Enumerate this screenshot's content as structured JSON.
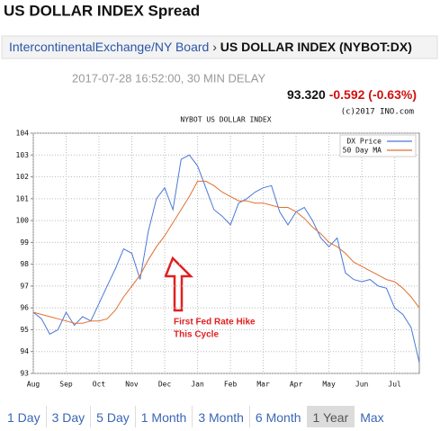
{
  "header": {
    "title": "US DOLLAR INDEX Spread",
    "breadcrumb_link": "IntercontinentalExchange/NY Board",
    "breadcrumb_sep": "›",
    "breadcrumb_current": "US DOLLAR INDEX (NYBOT:DX)",
    "timestamp": "2017-07-28 16:52:00, 30 MIN DELAY",
    "price": "93.320",
    "change": "-0.592 (-0.63%)",
    "copyright": "(c)2017 INO.com"
  },
  "chart_data": {
    "type": "line",
    "title": "NYBOT US DOLLAR INDEX",
    "categories": [
      "Aug",
      null,
      null,
      null,
      "Sep",
      null,
      null,
      null,
      "Oct",
      null,
      null,
      null,
      "Nov",
      null,
      null,
      null,
      "Dec",
      null,
      null,
      null,
      "Jan",
      null,
      null,
      null,
      "Feb",
      null,
      null,
      null,
      "Mar",
      null,
      null,
      null,
      "Apr",
      null,
      null,
      null,
      "May",
      null,
      null,
      null,
      "Jun",
      null,
      null,
      null,
      "Jul",
      null,
      null,
      null
    ],
    "series": [
      {
        "name": "DX Price",
        "color": "#4a78d8",
        "values": [
          95.8,
          95.5,
          94.8,
          95.0,
          95.8,
          95.2,
          95.6,
          95.4,
          96.2,
          97.0,
          97.8,
          98.7,
          98.5,
          97.3,
          99.5,
          101.0,
          101.5,
          100.5,
          102.8,
          103.0,
          102.5,
          101.5,
          100.5,
          100.2,
          99.8,
          100.8,
          101.0,
          101.3,
          101.5,
          101.6,
          100.4,
          99.8,
          100.4,
          100.6,
          100.0,
          99.2,
          98.8,
          99.2,
          97.6,
          97.3,
          97.2,
          97.3,
          97.0,
          96.9,
          96.0,
          95.7,
          95.1,
          93.5
        ]
      },
      {
        "name": "50 Day MA",
        "color": "#e07030",
        "values": [
          95.8,
          95.7,
          95.6,
          95.5,
          95.4,
          95.3,
          95.3,
          95.4,
          95.4,
          95.5,
          95.9,
          96.5,
          97.0,
          97.5,
          98.2,
          98.8,
          99.3,
          99.9,
          100.5,
          101.1,
          101.8,
          101.8,
          101.6,
          101.3,
          101.1,
          100.9,
          100.9,
          100.8,
          100.8,
          100.7,
          100.6,
          100.6,
          100.4,
          100.1,
          99.7,
          99.4,
          99.0,
          98.8,
          98.5,
          98.1,
          97.9,
          97.7,
          97.5,
          97.3,
          97.2,
          96.9,
          96.5,
          96.0
        ]
      }
    ],
    "ylim": [
      93,
      104
    ],
    "yticks": [
      93,
      94,
      95,
      96,
      97,
      98,
      99,
      100,
      101,
      102,
      103,
      104
    ],
    "grid": true,
    "legend": "upper right",
    "annotation": [
      "First Fed Rate Hike",
      "This Cycle"
    ],
    "annotation_color": "#e02020"
  },
  "range_buttons": [
    "1 Day",
    "3 Day",
    "5 Day",
    "1 Month",
    "3 Month",
    "6 Month",
    "1 Year",
    "Max"
  ],
  "selected_range": "1 Year"
}
